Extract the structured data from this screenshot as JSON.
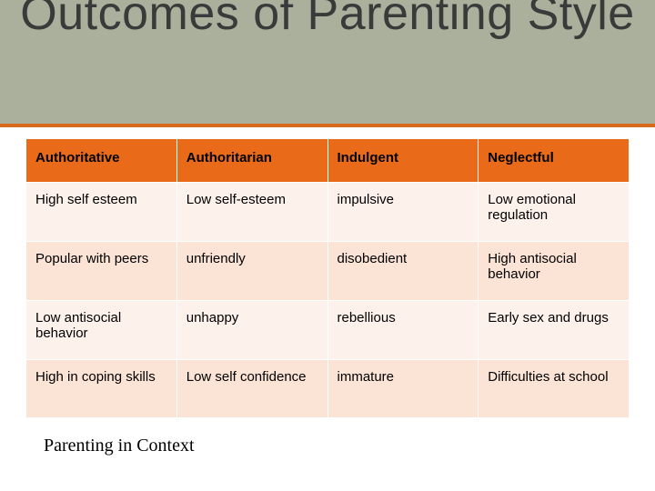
{
  "title": "Outcomes of Parenting Style",
  "table": {
    "type": "table",
    "columns": [
      "Authoritative",
      "Authoritarian",
      "Indulgent",
      "Neglectful"
    ],
    "rows": [
      [
        "High self esteem",
        "Low self-esteem",
        "impulsive",
        "Low emotional regulation"
      ],
      [
        "Popular with peers",
        "unfriendly",
        "disobedient",
        "High antisocial behavior"
      ],
      [
        "Low antisocial behavior",
        "unhappy",
        "rebellious",
        "Early sex and drugs"
      ],
      [
        "High in coping skills",
        "Low self confidence",
        "immature",
        "Difficulties at school"
      ]
    ],
    "header_bg": "#e96a18",
    "header_text_color": "#000000",
    "row_odd_bg": "#fdf2eb",
    "row_even_bg": "#fbe4d6",
    "border_color": "#ffffff",
    "font_size": 15
  },
  "footer": "Parenting in Context",
  "title_band_bg": "#aab09c",
  "title_underline": "#d86a1e",
  "title_color": "#3a3a3a",
  "title_fontsize": 52
}
